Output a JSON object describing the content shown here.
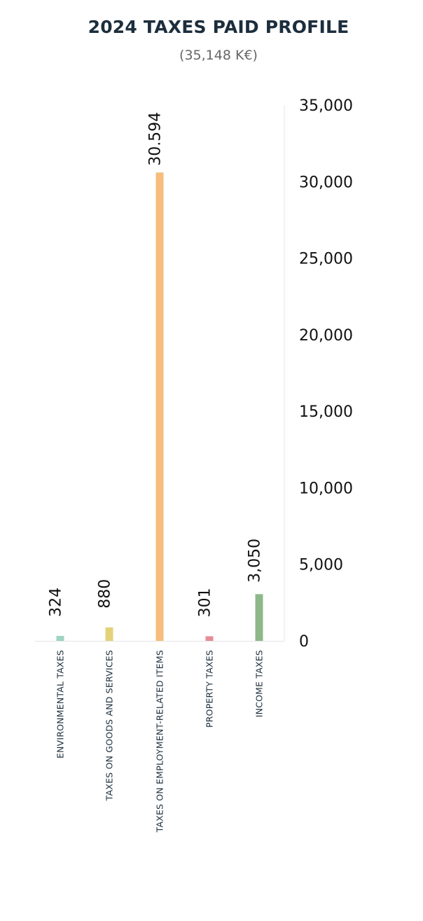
{
  "chart_data": {
    "type": "bar",
    "title": "2024 TAXES PAID PROFILE",
    "subtitle": "(35,148 K€)",
    "categories": [
      "ENVIRONMENTAL TAXES",
      "TAXES ON GOODS AND SERVICES",
      "TAXES ON EMPLOYMENT-RELATED ITEMS",
      "PROPERTY TAXES",
      "INCOME TAXES"
    ],
    "values": [
      324,
      880,
      30594,
      301,
      3050
    ],
    "data_labels": [
      "324",
      "880",
      "30.594",
      "301",
      "3,050"
    ],
    "colors": [
      "#9fd3c4",
      "#e3d27a",
      "#f6bd7d",
      "#e78c97",
      "#8db888"
    ],
    "ylim": [
      0,
      35000
    ],
    "yticks": [
      0,
      5000,
      10000,
      15000,
      20000,
      25000,
      30000,
      35000
    ],
    "ytick_labels": [
      "0",
      "5,000",
      "10,000",
      "15,000",
      "20,000",
      "25,000",
      "30,000",
      "35,000"
    ],
    "y_axis_side": "right",
    "grid": false,
    "legend": "none"
  }
}
